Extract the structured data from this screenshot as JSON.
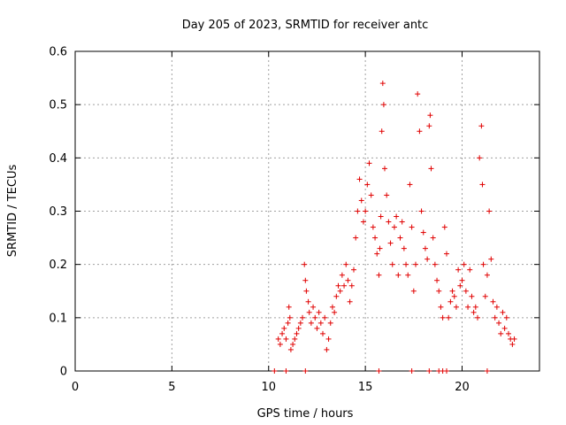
{
  "chart_data": {
    "type": "scatter",
    "title": "Day 205 of 2023, SRMTID for receiver antc",
    "xlabel": "GPS time / hours",
    "ylabel": "SRMTID / TECUs",
    "xlim": [
      0,
      24
    ],
    "ylim": [
      0,
      0.6
    ],
    "xticks": [
      0,
      5,
      10,
      15,
      20
    ],
    "xtick_labels": [
      "0",
      "5",
      "10",
      "15",
      "20"
    ],
    "yticks": [
      0,
      0.1,
      0.2,
      0.3,
      0.4,
      0.5,
      0.6
    ],
    "ytick_labels": [
      "0",
      "0.1",
      "0.2",
      "0.3",
      "0.4",
      "0.5",
      "0.6"
    ],
    "grid": true,
    "marker": "+",
    "color": "#e00000",
    "series": [
      {
        "name": "SRMTID",
        "points": [
          [
            10.5,
            0.06
          ],
          [
            10.6,
            0.05
          ],
          [
            10.7,
            0.07
          ],
          [
            10.8,
            0.08
          ],
          [
            10.9,
            0.06
          ],
          [
            11.0,
            0.09
          ],
          [
            11.05,
            0.12
          ],
          [
            11.1,
            0.1
          ],
          [
            11.15,
            0.04
          ],
          [
            11.25,
            0.05
          ],
          [
            11.35,
            0.06
          ],
          [
            11.45,
            0.07
          ],
          [
            11.55,
            0.08
          ],
          [
            11.65,
            0.09
          ],
          [
            11.75,
            0.1
          ],
          [
            11.85,
            0.2
          ],
          [
            11.9,
            0.17
          ],
          [
            11.95,
            0.15
          ],
          [
            12.05,
            0.13
          ],
          [
            12.1,
            0.11
          ],
          [
            12.2,
            0.09
          ],
          [
            12.3,
            0.12
          ],
          [
            12.4,
            0.1
          ],
          [
            12.5,
            0.08
          ],
          [
            12.6,
            0.11
          ],
          [
            12.7,
            0.09
          ],
          [
            12.8,
            0.07
          ],
          [
            12.9,
            0.1
          ],
          [
            13.0,
            0.04
          ],
          [
            13.1,
            0.06
          ],
          [
            13.2,
            0.09
          ],
          [
            13.3,
            0.12
          ],
          [
            13.4,
            0.11
          ],
          [
            13.5,
            0.14
          ],
          [
            13.6,
            0.16
          ],
          [
            13.7,
            0.15
          ],
          [
            13.8,
            0.18
          ],
          [
            13.9,
            0.16
          ],
          [
            14.0,
            0.2
          ],
          [
            14.1,
            0.17
          ],
          [
            14.2,
            0.13
          ],
          [
            14.3,
            0.16
          ],
          [
            14.4,
            0.19
          ],
          [
            14.5,
            0.25
          ],
          [
            14.6,
            0.3
          ],
          [
            14.7,
            0.36
          ],
          [
            14.8,
            0.32
          ],
          [
            14.9,
            0.28
          ],
          [
            15.0,
            0.3
          ],
          [
            15.1,
            0.35
          ],
          [
            15.2,
            0.39
          ],
          [
            15.3,
            0.33
          ],
          [
            15.4,
            0.27
          ],
          [
            15.5,
            0.25
          ],
          [
            15.6,
            0.22
          ],
          [
            15.7,
            0.18
          ],
          [
            15.75,
            0.23
          ],
          [
            15.8,
            0.29
          ],
          [
            15.85,
            0.45
          ],
          [
            15.9,
            0.54
          ],
          [
            15.95,
            0.5
          ],
          [
            16.0,
            0.38
          ],
          [
            16.1,
            0.33
          ],
          [
            16.2,
            0.28
          ],
          [
            16.3,
            0.24
          ],
          [
            16.4,
            0.2
          ],
          [
            16.5,
            0.27
          ],
          [
            16.6,
            0.29
          ],
          [
            16.7,
            0.18
          ],
          [
            16.8,
            0.25
          ],
          [
            16.9,
            0.28
          ],
          [
            17.0,
            0.23
          ],
          [
            17.1,
            0.2
          ],
          [
            17.2,
            0.18
          ],
          [
            17.3,
            0.35
          ],
          [
            17.4,
            0.27
          ],
          [
            17.5,
            0.15
          ],
          [
            17.6,
            0.2
          ],
          [
            17.7,
            0.52
          ],
          [
            17.8,
            0.45
          ],
          [
            17.9,
            0.3
          ],
          [
            18.0,
            0.26
          ],
          [
            18.1,
            0.23
          ],
          [
            18.2,
            0.21
          ],
          [
            18.3,
            0.46
          ],
          [
            18.35,
            0.48
          ],
          [
            18.4,
            0.38
          ],
          [
            18.5,
            0.25
          ],
          [
            18.6,
            0.2
          ],
          [
            18.7,
            0.17
          ],
          [
            18.8,
            0.15
          ],
          [
            18.9,
            0.12
          ],
          [
            19.0,
            0.1
          ],
          [
            19.1,
            0.27
          ],
          [
            19.2,
            0.22
          ],
          [
            19.3,
            0.1
          ],
          [
            19.4,
            0.13
          ],
          [
            19.5,
            0.15
          ],
          [
            19.6,
            0.14
          ],
          [
            19.7,
            0.12
          ],
          [
            19.8,
            0.19
          ],
          [
            19.9,
            0.16
          ],
          [
            20.0,
            0.17
          ],
          [
            20.1,
            0.2
          ],
          [
            20.2,
            0.15
          ],
          [
            20.3,
            0.12
          ],
          [
            20.4,
            0.19
          ],
          [
            20.5,
            0.14
          ],
          [
            20.6,
            0.11
          ],
          [
            20.7,
            0.12
          ],
          [
            20.8,
            0.1
          ],
          [
            20.9,
            0.4
          ],
          [
            21.0,
            0.46
          ],
          [
            21.05,
            0.35
          ],
          [
            21.1,
            0.2
          ],
          [
            21.2,
            0.14
          ],
          [
            21.3,
            0.18
          ],
          [
            21.4,
            0.3
          ],
          [
            21.5,
            0.21
          ],
          [
            21.6,
            0.13
          ],
          [
            21.7,
            0.1
          ],
          [
            21.8,
            0.12
          ],
          [
            21.9,
            0.09
          ],
          [
            22.0,
            0.07
          ],
          [
            22.1,
            0.11
          ],
          [
            22.2,
            0.08
          ],
          [
            22.3,
            0.1
          ],
          [
            22.4,
            0.07
          ],
          [
            22.5,
            0.06
          ],
          [
            22.6,
            0.05
          ],
          [
            22.7,
            0.06
          ]
        ]
      },
      {
        "name": "markers-at-zero",
        "points": [
          [
            10.3,
            0
          ],
          [
            10.9,
            0
          ],
          [
            11.9,
            0
          ],
          [
            15.7,
            0
          ],
          [
            17.4,
            0
          ],
          [
            18.3,
            0
          ],
          [
            18.8,
            0
          ],
          [
            19.0,
            0
          ],
          [
            19.2,
            0
          ],
          [
            21.3,
            0
          ]
        ]
      }
    ]
  }
}
